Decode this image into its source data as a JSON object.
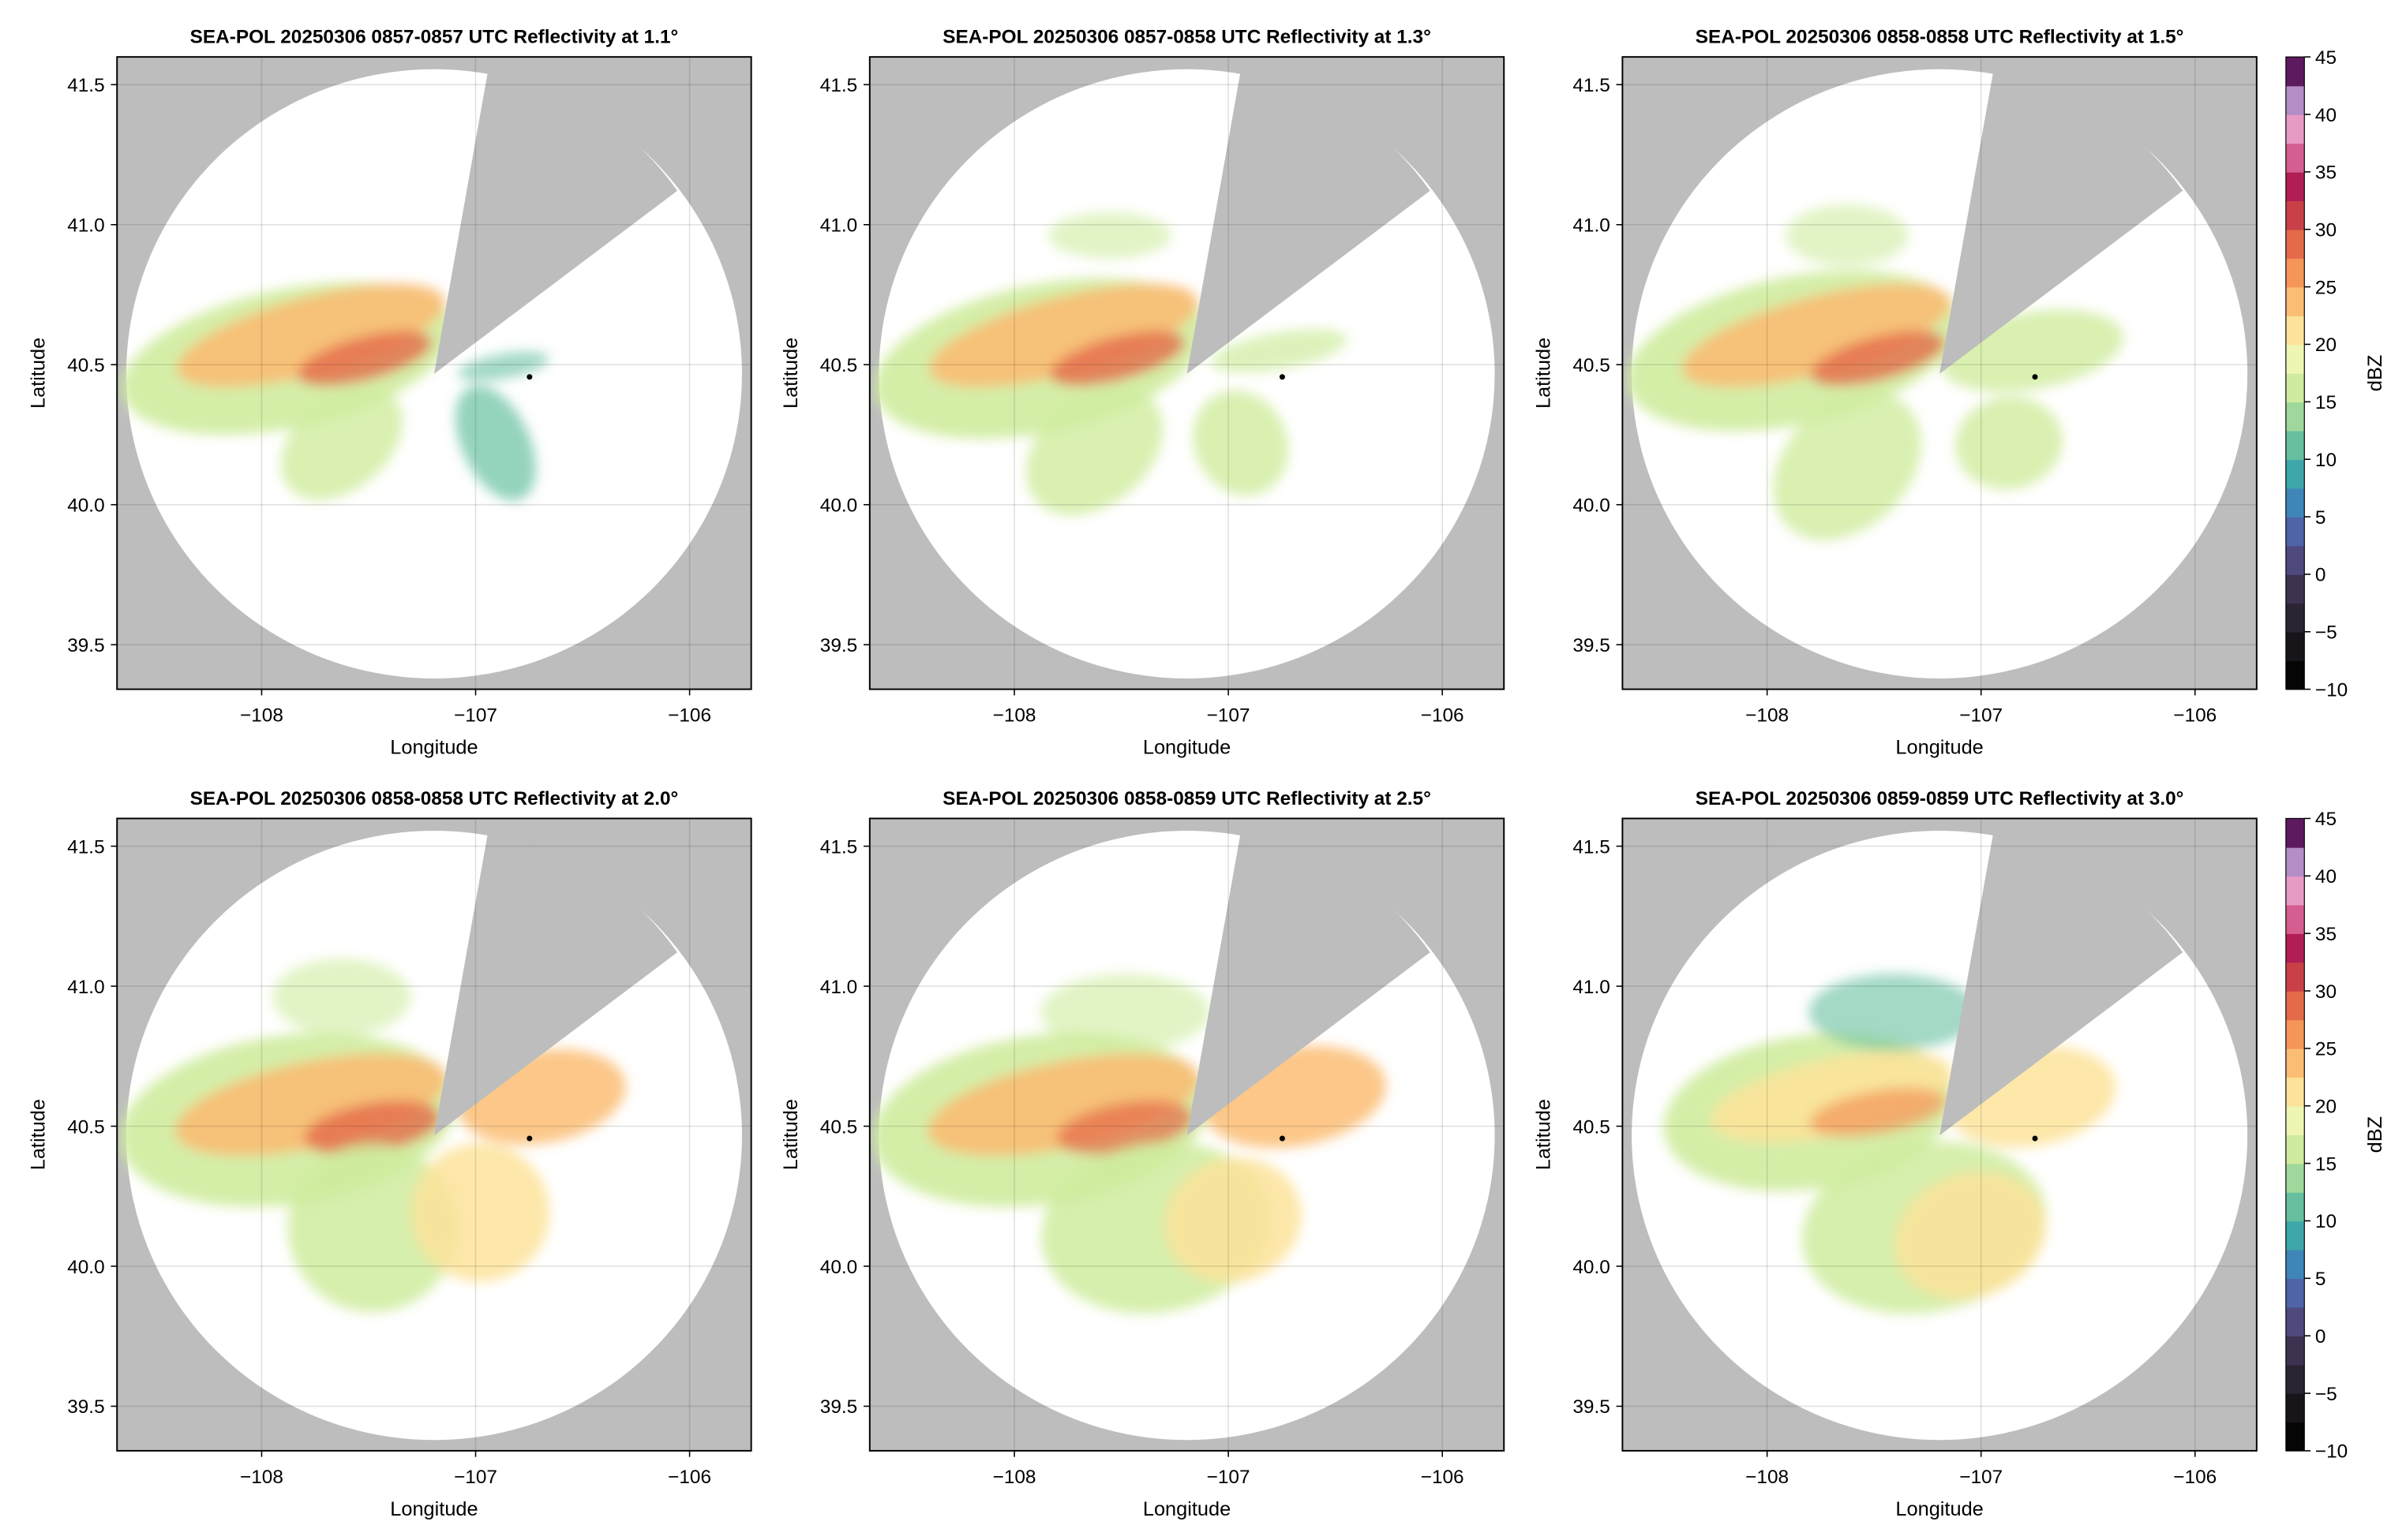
{
  "chart_data": [
    {
      "type": "radar-ppi",
      "title": "SEA-POL 20250306 0857-0857 UTC Reflectivity at 1.1°",
      "xlabel": "Longitude",
      "ylabel": "Latitude",
      "xlim": [
        -108.676,
        -105.712
      ],
      "ylim": [
        39.341,
        41.599
      ],
      "xticks": [
        {
          "value": -108,
          "label": "−108"
        },
        {
          "value": -107,
          "label": "−107"
        },
        {
          "value": -106,
          "label": "−106"
        }
      ],
      "yticks": [
        39.5,
        {
          "value": 40.0,
          "label": "40.0"
        },
        40.5,
        {
          "value": 41.0,
          "label": "41.0"
        },
        41.5
      ],
      "grid": true
    },
    {
      "type": "radar-ppi",
      "title": "SEA-POL 20250306 0857-0858 UTC Reflectivity at 1.3°",
      "xlabel": "Longitude",
      "ylabel": "Latitude",
      "xlim": [
        -108.676,
        -105.712
      ],
      "ylim": [
        39.341,
        41.599
      ],
      "xticks": [
        {
          "value": -108,
          "label": "−108"
        },
        {
          "value": -107,
          "label": "−107"
        },
        {
          "value": -106,
          "label": "−106"
        }
      ],
      "yticks": [
        39.5,
        {
          "value": 40.0,
          "label": "40.0"
        },
        40.5,
        {
          "value": 41.0,
          "label": "41.0"
        },
        41.5
      ],
      "grid": true
    },
    {
      "type": "radar-ppi",
      "title": "SEA-POL 20250306 0858-0858 UTC Reflectivity at 1.5°",
      "xlabel": "Longitude",
      "ylabel": "Latitude",
      "xlim": [
        -108.676,
        -105.712
      ],
      "ylim": [
        39.341,
        41.599
      ],
      "xticks": [
        {
          "value": -108,
          "label": "−108"
        },
        {
          "value": -107,
          "label": "−107"
        },
        {
          "value": -106,
          "label": "−106"
        }
      ],
      "yticks": [
        39.5,
        {
          "value": 40.0,
          "label": "40.0"
        },
        40.5,
        {
          "value": 41.0,
          "label": "41.0"
        },
        41.5
      ],
      "grid": true,
      "colorbar": {
        "label": "dBZ",
        "lim": [
          -10,
          45
        ],
        "ticks": [
          {
            "value": -10,
            "label": "−10"
          },
          {
            "value": -5,
            "label": "−5"
          },
          0,
          5,
          10,
          15,
          20,
          25,
          30,
          35,
          40,
          45
        ],
        "colors": [
          "#050505",
          "#17141a",
          "#2b2433",
          "#3d3350",
          "#4f4a7e",
          "#4d64a8",
          "#3f86b8",
          "#3ea7a9",
          "#66c09f",
          "#9fd89c",
          "#cfec9e",
          "#eff5b3",
          "#fde39a",
          "#fbbd74",
          "#f59658",
          "#e56a49",
          "#c94147",
          "#b11d55",
          "#d55d8f",
          "#e79bc4",
          "#b48dc7",
          "#5d1a5e"
        ]
      }
    },
    {
      "type": "radar-ppi",
      "title": "SEA-POL 20250306 0858-0858 UTC Reflectivity at 2.0°",
      "xlabel": "Longitude",
      "ylabel": "Latitude",
      "xlim": [
        -108.676,
        -105.712
      ],
      "ylim": [
        39.341,
        41.599
      ],
      "xticks": [
        {
          "value": -108,
          "label": "−108"
        },
        {
          "value": -107,
          "label": "−107"
        },
        {
          "value": -106,
          "label": "−106"
        }
      ],
      "yticks": [
        39.5,
        {
          "value": 40.0,
          "label": "40.0"
        },
        40.5,
        {
          "value": 41.0,
          "label": "41.0"
        },
        41.5
      ],
      "grid": true
    },
    {
      "type": "radar-ppi",
      "title": "SEA-POL 20250306 0858-0859 UTC Reflectivity at 2.5°",
      "xlabel": "Longitude",
      "ylabel": "Latitude",
      "xlim": [
        -108.676,
        -105.712
      ],
      "ylim": [
        39.341,
        41.599
      ],
      "xticks": [
        {
          "value": -108,
          "label": "−108"
        },
        {
          "value": -107,
          "label": "−107"
        },
        {
          "value": -106,
          "label": "−106"
        }
      ],
      "yticks": [
        39.5,
        {
          "value": 40.0,
          "label": "40.0"
        },
        40.5,
        {
          "value": 41.0,
          "label": "41.0"
        },
        41.5
      ],
      "grid": true
    },
    {
      "type": "radar-ppi",
      "title": "SEA-POL 20250306 0859-0859 UTC Reflectivity at 3.0°",
      "xlabel": "Longitude",
      "ylabel": "Latitude",
      "xlim": [
        -108.676,
        -105.712
      ],
      "ylim": [
        39.341,
        41.599
      ],
      "xticks": [
        {
          "value": -108,
          "label": "−108"
        },
        {
          "value": -107,
          "label": "−107"
        },
        {
          "value": -106,
          "label": "−106"
        }
      ],
      "yticks": [
        39.5,
        {
          "value": 40.0,
          "label": "40.0"
        },
        40.5,
        {
          "value": 41.0,
          "label": "41.0"
        },
        41.5
      ],
      "grid": true,
      "colorbar": {
        "label": "dBZ",
        "lim": [
          -10,
          45
        ],
        "ticks": [
          {
            "value": -10,
            "label": "−10"
          },
          {
            "value": -5,
            "label": "−5"
          },
          0,
          5,
          10,
          15,
          20,
          25,
          30,
          35,
          40,
          45
        ],
        "colors": [
          "#050505",
          "#17141a",
          "#2b2433",
          "#3d3350",
          "#4f4a7e",
          "#4d64a8",
          "#3f86b8",
          "#3ea7a9",
          "#66c09f",
          "#9fd89c",
          "#cfec9e",
          "#eff5b3",
          "#fde39a",
          "#fbbd74",
          "#f59658",
          "#e56a49",
          "#c94147",
          "#b11d55",
          "#d55d8f",
          "#e79bc4",
          "#b48dc7",
          "#5d1a5e"
        ]
      }
    }
  ]
}
